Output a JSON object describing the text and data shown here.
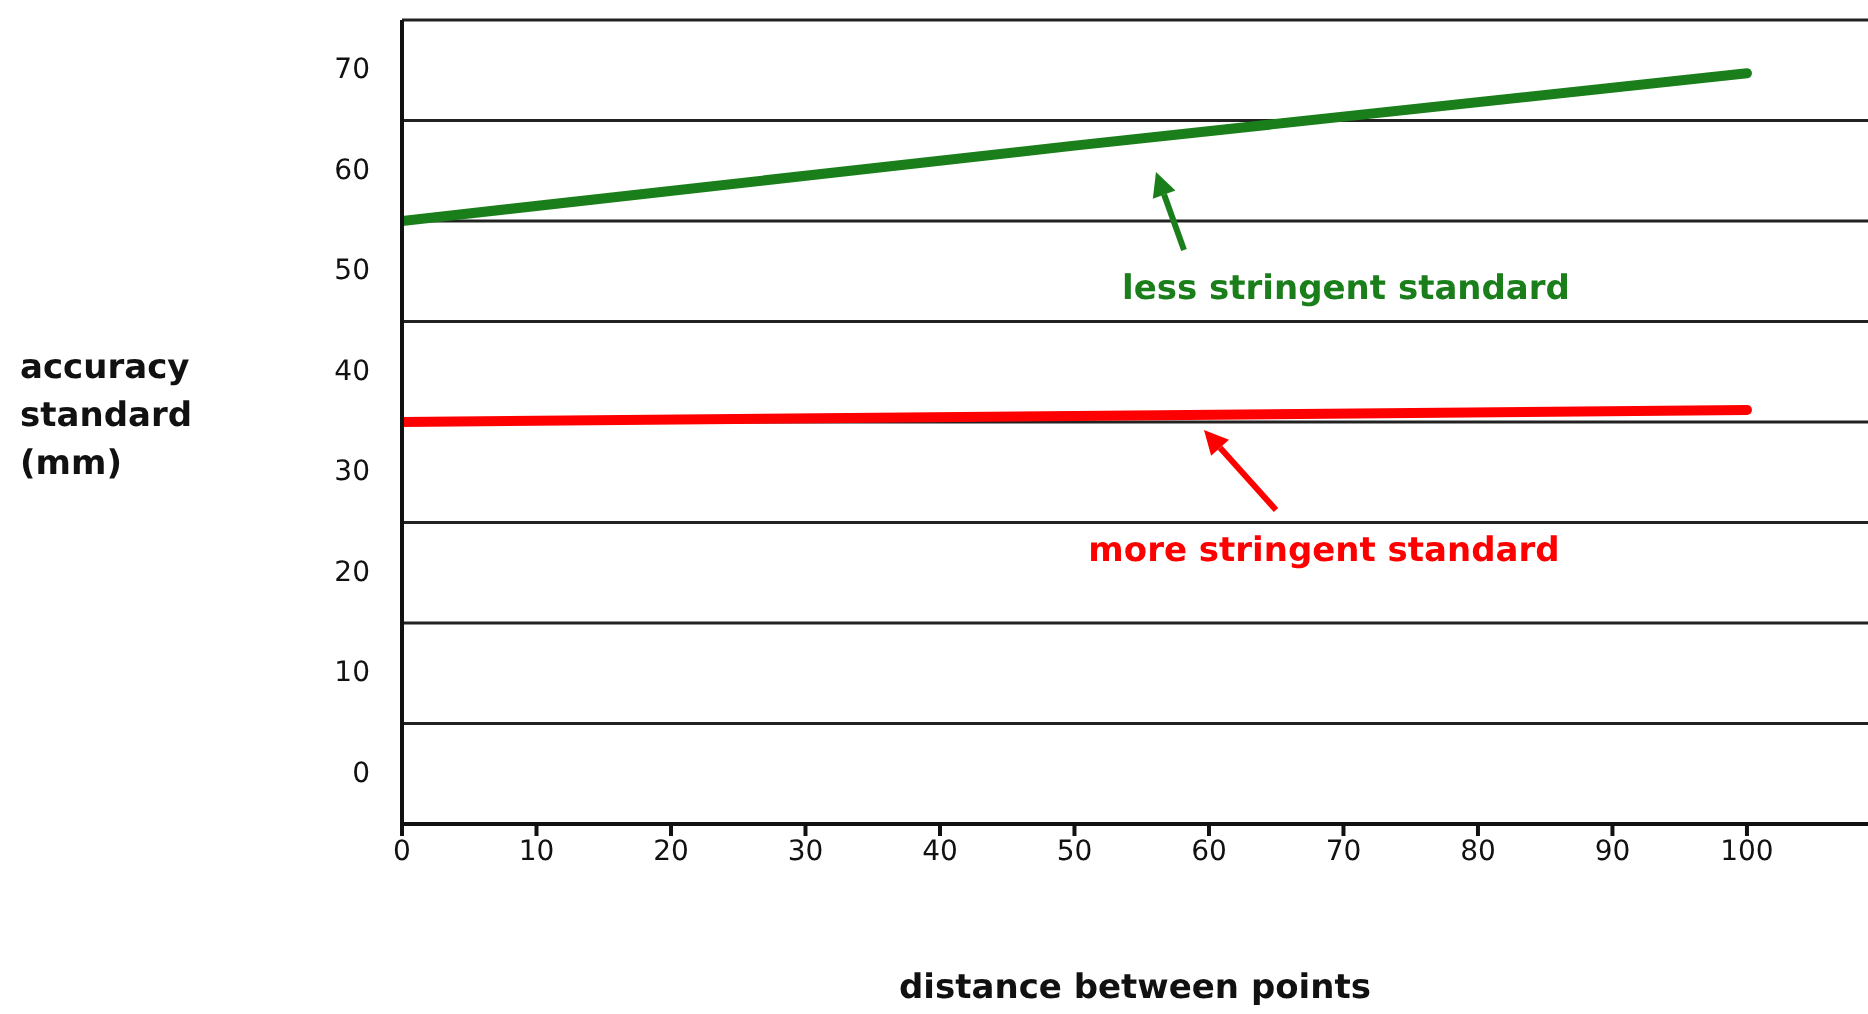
{
  "chart_data": {
    "type": "line",
    "xlabel": "distance between points",
    "ylabel": "accuracy standard (mm)",
    "x": [
      0,
      50,
      100
    ],
    "series": [
      {
        "color": "#1a7f1a",
        "values": [
          55,
          62.5,
          69.7
        ]
      },
      {
        "color": "#ff0000",
        "values": [
          35,
          35.6,
          36.2
        ]
      }
    ],
    "xlim": [
      0,
      109
    ],
    "xticks": [
      0,
      10,
      20,
      30,
      40,
      50,
      60,
      70,
      80,
      90,
      100
    ],
    "ylim": [
      -5,
      75
    ],
    "yticks": [
      0,
      10,
      20,
      30,
      40,
      50,
      60,
      70
    ],
    "ref_lines": [
      {
        "axis": "y",
        "value": 5
      },
      {
        "axis": "y",
        "value": 15
      },
      {
        "axis": "y",
        "value": 25
      },
      {
        "axis": "y",
        "value": 35
      },
      {
        "axis": "y",
        "value": 45
      },
      {
        "axis": "y",
        "value": 55
      },
      {
        "axis": "y",
        "value": 65
      },
      {
        "axis": "y",
        "value": 75
      }
    ],
    "annotations": [
      "less stringent standard",
      "more stringent standard"
    ],
    "marker": "none",
    "line_style": "solid"
  }
}
